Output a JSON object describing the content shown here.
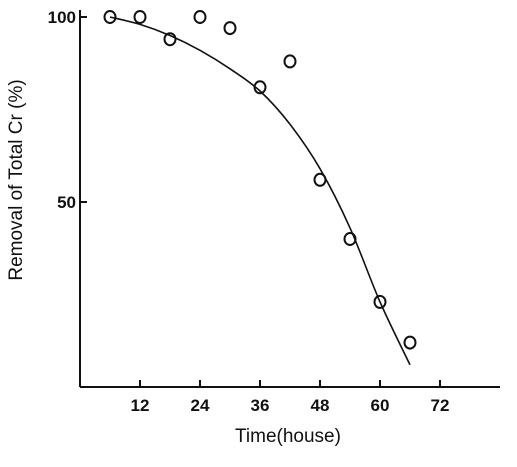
{
  "chart_data": {
    "type": "scatter",
    "xlabel": "Time(house)",
    "ylabel": "Removal of Total Cr (%)",
    "xlim": [
      0,
      84
    ],
    "ylim": [
      0,
      100
    ],
    "x_ticks": [
      12,
      24,
      36,
      48,
      60,
      72
    ],
    "y_ticks": [
      50,
      100
    ],
    "grid": false,
    "series": [
      {
        "kind": "points",
        "x": [
          6,
          12,
          18,
          24,
          30,
          36,
          42,
          48,
          54,
          60,
          66
        ],
        "y": [
          100,
          100,
          94,
          100,
          97,
          81,
          88,
          56,
          40,
          23,
          12
        ]
      },
      {
        "kind": "fitted-curve",
        "x": [
          6,
          12,
          18,
          24,
          30,
          36,
          42,
          48,
          54,
          60,
          66
        ],
        "y": [
          100,
          98,
          95,
          91,
          86,
          80,
          71,
          59,
          43,
          23,
          6
        ]
      }
    ]
  }
}
